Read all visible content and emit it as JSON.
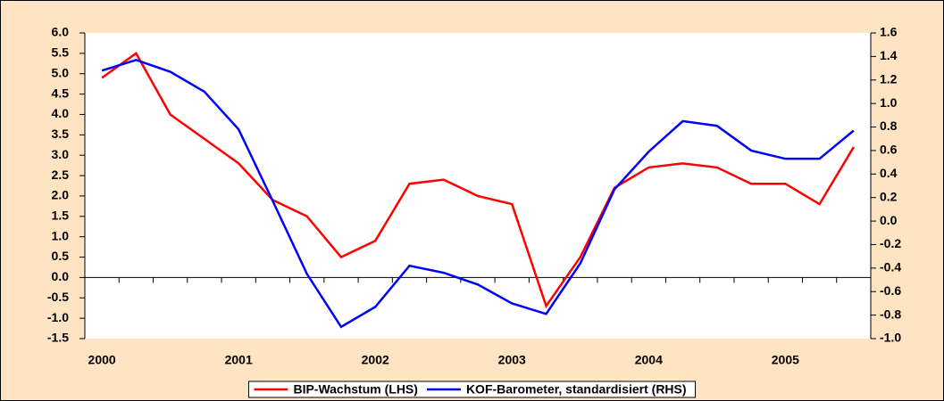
{
  "chart_data": {
    "type": "line",
    "categories": [
      "2000",
      null,
      null,
      null,
      "2001",
      null,
      null,
      null,
      "2002",
      null,
      null,
      null,
      "2003",
      null,
      null,
      null,
      "2004",
      null,
      null,
      null,
      "2005",
      null,
      null
    ],
    "series": [
      {
        "name": "BIP-Wachstum (LHS)",
        "color": "#ff0000",
        "axis": "y",
        "values": [
          4.9,
          5.5,
          4.0,
          3.4,
          2.8,
          1.9,
          1.5,
          0.5,
          0.9,
          2.3,
          2.4,
          2.0,
          1.8,
          -0.7,
          0.5,
          2.2,
          2.7,
          2.8,
          2.7,
          2.3,
          2.3,
          1.8,
          3.2
        ]
      },
      {
        "name": "KOF-Barometer, standardisiert (RHS)",
        "color": "#0000ff",
        "axis": "y2",
        "values": [
          1.28,
          1.37,
          1.27,
          1.1,
          0.78,
          0.17,
          -0.45,
          -0.9,
          -0.73,
          -0.38,
          -0.44,
          -0.54,
          -0.7,
          -0.79,
          -0.36,
          0.27,
          0.59,
          0.85,
          0.81,
          0.6,
          0.53,
          0.53,
          0.77
        ]
      }
    ],
    "ylim": [
      -1.5,
      6.0
    ],
    "yticks": [
      {
        "value": -1.5,
        "label": "-1.5"
      },
      {
        "value": -1.0,
        "label": "-1.0"
      },
      {
        "value": -0.5,
        "label": "-0.5"
      },
      {
        "value": 0,
        "label": "0.0"
      },
      {
        "value": 0.5,
        "label": "0.5"
      },
      {
        "value": 1.0,
        "label": "1.0"
      },
      {
        "value": 1.5,
        "label": "1.5"
      },
      {
        "value": 2.0,
        "label": "2.0"
      },
      {
        "value": 2.5,
        "label": "2.5"
      },
      {
        "value": 3.0,
        "label": "3.0"
      },
      {
        "value": 3.5,
        "label": "3.5"
      },
      {
        "value": 4.0,
        "label": "4.0"
      },
      {
        "value": 4.5,
        "label": "4.5"
      },
      {
        "value": 5.0,
        "label": "5.0"
      },
      {
        "value": 5.5,
        "label": "5.5"
      },
      {
        "value": 6.0,
        "label": "6.0"
      }
    ],
    "y2lim": [
      -1.0,
      1.6
    ],
    "y2ticks": [
      {
        "value": -1.0,
        "label": "-1.0"
      },
      {
        "value": -0.8,
        "label": "-0.8"
      },
      {
        "value": -0.6,
        "label": "-0.6"
      },
      {
        "value": -0.4,
        "label": "-0.4"
      },
      {
        "value": -0.2,
        "label": "-0.2"
      },
      {
        "value": 0,
        "label": "0.0"
      },
      {
        "value": 0.2,
        "label": "0.2"
      },
      {
        "value": 0.4,
        "label": "0.4"
      },
      {
        "value": 0.6,
        "label": "0.6"
      },
      {
        "value": 0.8,
        "label": "0.8"
      },
      {
        "value": 1.0,
        "label": "1.0"
      },
      {
        "value": 1.2,
        "label": "1.2"
      },
      {
        "value": 1.4,
        "label": "1.4"
      },
      {
        "value": 1.6,
        "label": "1.6"
      }
    ],
    "legend": "bottom",
    "background": "#ffe4c4"
  }
}
